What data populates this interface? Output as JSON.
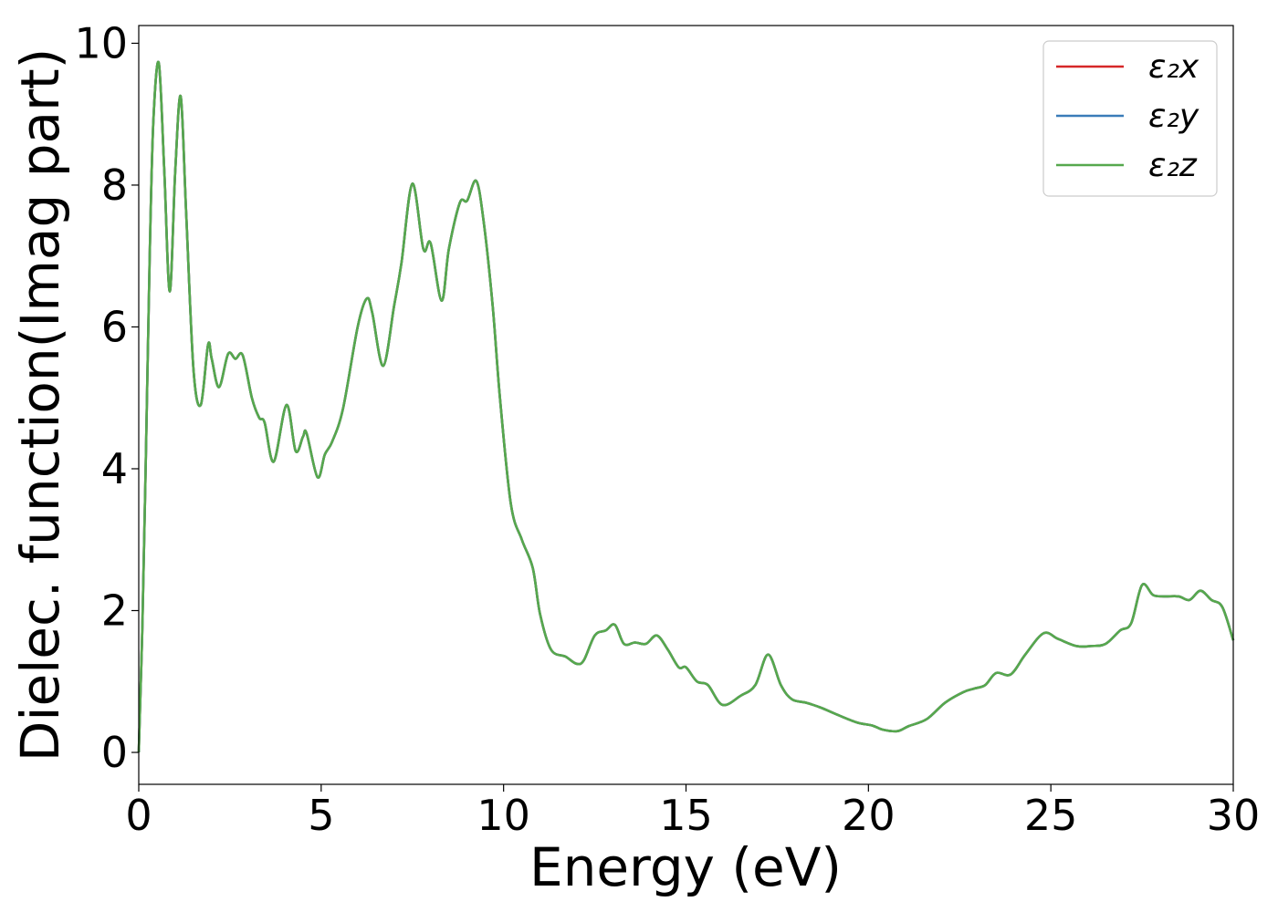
{
  "chart_data": {
    "type": "line",
    "title": "",
    "xlabel": "Energy (eV)",
    "ylabel": "Dielec. function(Imag part)",
    "xlim": [
      0,
      30
    ],
    "ylim": [
      -0.45,
      10.25
    ],
    "xticks": [
      0,
      5,
      10,
      15,
      20,
      25,
      30
    ],
    "yticks": [
      0,
      2,
      4,
      6,
      8,
      10
    ],
    "grid": false,
    "legend_position": "top-right",
    "x": [
      0,
      0.1,
      0.2,
      0.3,
      0.4,
      0.55,
      0.7,
      0.85,
      1.0,
      1.15,
      1.3,
      1.5,
      1.7,
      1.9,
      2.0,
      2.2,
      2.45,
      2.65,
      2.85,
      3.1,
      3.3,
      3.45,
      3.7,
      4.05,
      4.3,
      4.5,
      4.6,
      4.9,
      5.1,
      5.3,
      5.6,
      6.0,
      6.25,
      6.4,
      6.7,
      7.0,
      7.2,
      7.5,
      7.8,
      8.0,
      8.3,
      8.5,
      8.8,
      9.0,
      9.25,
      9.45,
      9.7,
      9.9,
      10.2,
      10.5,
      10.8,
      11.0,
      11.3,
      11.7,
      12.0,
      12.2,
      12.5,
      12.8,
      13.05,
      13.3,
      13.6,
      13.9,
      14.2,
      14.5,
      14.8,
      15.0,
      15.3,
      15.6,
      16.0,
      16.5,
      16.9,
      17.25,
      17.6,
      17.9,
      18.3,
      18.7,
      19.2,
      19.7,
      20.1,
      20.4,
      20.8,
      21.1,
      21.6,
      22.1,
      22.6,
      22.9,
      23.2,
      23.5,
      23.9,
      24.3,
      24.8,
      25.2,
      25.7,
      26.1,
      26.5,
      26.9,
      27.2,
      27.5,
      27.8,
      28.1,
      28.5,
      28.8,
      29.1,
      29.4,
      29.7,
      30.0
    ],
    "series": [
      {
        "name": "ε₂x",
        "color": "#d62728",
        "values": [
          0.0,
          1.8,
          4.3,
          7.0,
          8.9,
          9.72,
          8.2,
          6.5,
          8.2,
          9.25,
          7.6,
          5.4,
          4.9,
          5.75,
          5.55,
          5.15,
          5.62,
          5.55,
          5.6,
          5.0,
          4.72,
          4.65,
          4.1,
          4.9,
          4.25,
          4.45,
          4.5,
          3.88,
          4.2,
          4.38,
          4.85,
          6.0,
          6.4,
          6.2,
          5.45,
          6.3,
          6.9,
          8.02,
          7.1,
          7.18,
          6.37,
          7.1,
          7.75,
          7.78,
          8.06,
          7.5,
          6.3,
          5.0,
          3.5,
          3.0,
          2.6,
          1.95,
          1.45,
          1.35,
          1.25,
          1.3,
          1.65,
          1.72,
          1.8,
          1.53,
          1.55,
          1.53,
          1.65,
          1.45,
          1.2,
          1.2,
          1.0,
          0.95,
          0.67,
          0.8,
          0.95,
          1.38,
          0.95,
          0.75,
          0.7,
          0.63,
          0.52,
          0.42,
          0.38,
          0.32,
          0.3,
          0.37,
          0.47,
          0.7,
          0.85,
          0.9,
          0.95,
          1.12,
          1.1,
          1.38,
          1.68,
          1.6,
          1.5,
          1.5,
          1.53,
          1.72,
          1.82,
          2.36,
          2.22,
          2.2,
          2.2,
          2.15,
          2.28,
          2.15,
          2.05,
          1.58
        ]
      },
      {
        "name": "ε₂y",
        "color": "#3a7cb9",
        "values": [
          0.0,
          1.8,
          4.3,
          7.0,
          8.9,
          9.72,
          8.2,
          6.5,
          8.2,
          9.25,
          7.6,
          5.4,
          4.9,
          5.75,
          5.55,
          5.15,
          5.62,
          5.55,
          5.6,
          5.0,
          4.72,
          4.65,
          4.1,
          4.9,
          4.25,
          4.45,
          4.5,
          3.88,
          4.2,
          4.38,
          4.85,
          6.0,
          6.4,
          6.2,
          5.45,
          6.3,
          6.9,
          8.02,
          7.1,
          7.18,
          6.37,
          7.1,
          7.75,
          7.78,
          8.06,
          7.5,
          6.3,
          5.0,
          3.5,
          3.0,
          2.6,
          1.95,
          1.45,
          1.35,
          1.25,
          1.3,
          1.65,
          1.72,
          1.8,
          1.53,
          1.55,
          1.53,
          1.65,
          1.45,
          1.2,
          1.2,
          1.0,
          0.95,
          0.67,
          0.8,
          0.95,
          1.38,
          0.95,
          0.75,
          0.7,
          0.63,
          0.52,
          0.42,
          0.38,
          0.32,
          0.3,
          0.37,
          0.47,
          0.7,
          0.85,
          0.9,
          0.95,
          1.12,
          1.1,
          1.38,
          1.68,
          1.6,
          1.5,
          1.5,
          1.53,
          1.72,
          1.82,
          2.36,
          2.22,
          2.2,
          2.2,
          2.15,
          2.28,
          2.15,
          2.05,
          1.58
        ]
      },
      {
        "name": "ε₂z",
        "color": "#56a84d",
        "values": [
          0.0,
          1.8,
          4.3,
          7.0,
          8.9,
          9.72,
          8.2,
          6.5,
          8.2,
          9.25,
          7.6,
          5.4,
          4.9,
          5.75,
          5.55,
          5.15,
          5.62,
          5.55,
          5.6,
          5.0,
          4.72,
          4.65,
          4.1,
          4.9,
          4.25,
          4.45,
          4.5,
          3.88,
          4.2,
          4.38,
          4.85,
          6.0,
          6.4,
          6.2,
          5.45,
          6.3,
          6.9,
          8.02,
          7.1,
          7.18,
          6.37,
          7.1,
          7.75,
          7.78,
          8.06,
          7.5,
          6.3,
          5.0,
          3.5,
          3.0,
          2.6,
          1.95,
          1.45,
          1.35,
          1.25,
          1.3,
          1.65,
          1.72,
          1.8,
          1.53,
          1.55,
          1.53,
          1.65,
          1.45,
          1.2,
          1.2,
          1.0,
          0.95,
          0.67,
          0.8,
          0.95,
          1.38,
          0.95,
          0.75,
          0.7,
          0.63,
          0.52,
          0.42,
          0.38,
          0.32,
          0.3,
          0.37,
          0.47,
          0.7,
          0.85,
          0.9,
          0.95,
          1.12,
          1.1,
          1.38,
          1.68,
          1.6,
          1.5,
          1.5,
          1.53,
          1.72,
          1.82,
          2.36,
          2.22,
          2.2,
          2.2,
          2.15,
          2.28,
          2.15,
          2.05,
          1.58
        ]
      }
    ]
  }
}
